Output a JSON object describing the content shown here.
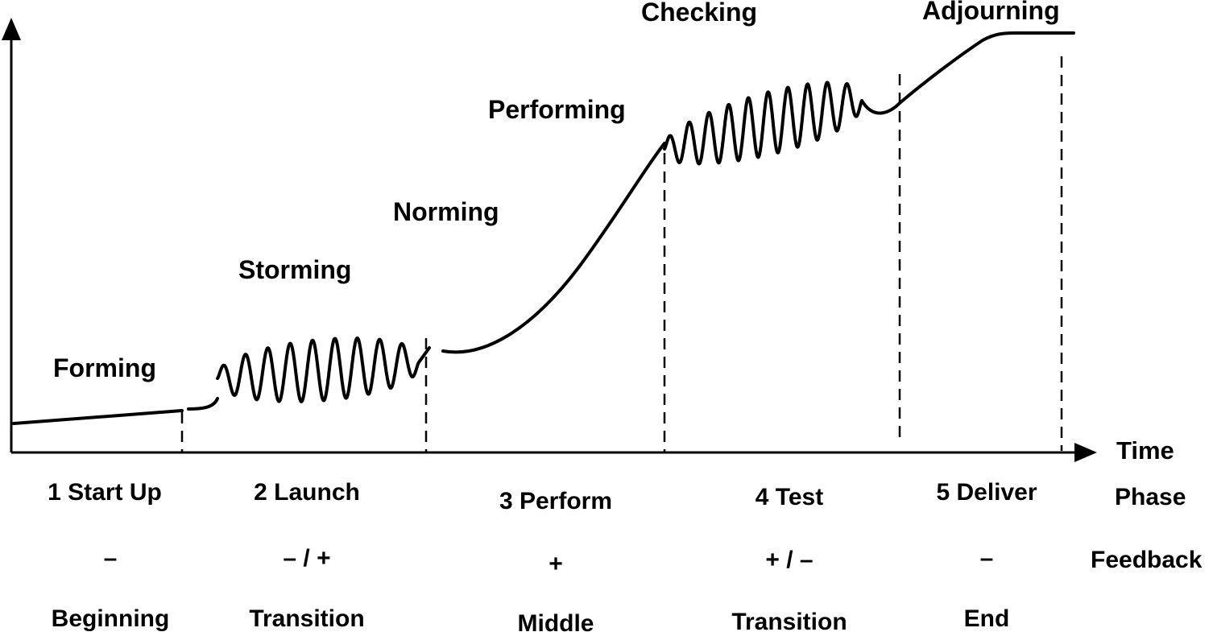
{
  "stages": {
    "forming": "Forming",
    "storming": "Storming",
    "norming": "Norming",
    "performing": "Performing",
    "checking": "Checking",
    "adjourning": "Adjourning"
  },
  "axis": {
    "x_label": "Time"
  },
  "row_labels": {
    "phase": "Phase",
    "feedback": "Feedback"
  },
  "phases": [
    {
      "name": "1 Start Up",
      "feedback": "–",
      "position": "Beginning"
    },
    {
      "name": "2 Launch",
      "feedback": "– / +",
      "position": "Transition"
    },
    {
      "name": "3 Perform",
      "feedback": "+",
      "position": "Middle"
    },
    {
      "name": "4 Test",
      "feedback": "+ / –",
      "position": "Transition"
    },
    {
      "name": "5 Deliver",
      "feedback": "–",
      "position": "End"
    }
  ]
}
